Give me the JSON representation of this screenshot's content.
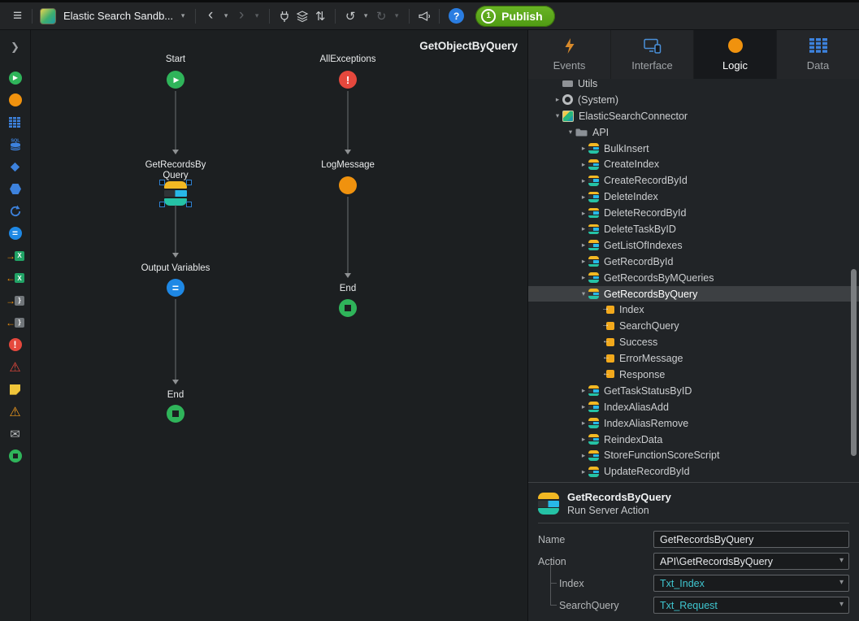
{
  "toolbar": {
    "app_title": "Elastic Search Sandb...",
    "publish_label": "Publish",
    "publish_count": "1"
  },
  "sidebar": {
    "tools": [
      {
        "name": "start-icon"
      },
      {
        "name": "server-action-icon"
      },
      {
        "name": "aggregate-icon"
      },
      {
        "name": "sql-query-icon"
      },
      {
        "name": "if-icon"
      },
      {
        "name": "switch-icon"
      },
      {
        "name": "for-each-icon"
      },
      {
        "name": "assign-icon"
      },
      {
        "name": "record-list-to-excel-icon"
      },
      {
        "name": "excel-to-record-list-icon"
      },
      {
        "name": "json-serialize-icon"
      },
      {
        "name": "json-deserialize-icon"
      },
      {
        "name": "raise-exception-icon"
      },
      {
        "name": "exception-handler-icon"
      },
      {
        "name": "comment-icon"
      },
      {
        "name": "trigger-icon"
      },
      {
        "name": "send-email-icon"
      },
      {
        "name": "end-icon"
      }
    ]
  },
  "canvas": {
    "title": "GetObjectByQuery",
    "main_flow": [
      {
        "label": "Start",
        "type": "start"
      },
      {
        "label": "GetRecordsBy Query",
        "type": "server-action",
        "selected": true
      },
      {
        "label": "Output Variables",
        "type": "assign"
      },
      {
        "label": "End",
        "type": "end"
      }
    ],
    "exception_flow": [
      {
        "label": "AllExceptions",
        "type": "exception"
      },
      {
        "label": "LogMessage",
        "type": "action"
      },
      {
        "label": "End",
        "type": "end"
      }
    ]
  },
  "panel": {
    "tabs": [
      {
        "label": "Events",
        "icon": "events-icon",
        "active": false
      },
      {
        "label": "Interface",
        "icon": "interface-icon",
        "active": false
      },
      {
        "label": "Logic",
        "icon": "logic-icon",
        "active": true
      },
      {
        "label": "Data",
        "icon": "data-icon",
        "active": false
      }
    ],
    "tree": {
      "items": [
        {
          "label": "Utils",
          "depth": 1,
          "icon": "folder-plain",
          "arrow": ""
        },
        {
          "label": "(System)",
          "depth": 1,
          "icon": "system",
          "arrow": "collapsed"
        },
        {
          "label": "ElasticSearchConnector",
          "depth": 1,
          "icon": "app",
          "arrow": "expanded"
        },
        {
          "label": "API",
          "depth": 2,
          "icon": "folder",
          "arrow": "expanded"
        },
        {
          "label": "BulkInsert",
          "depth": 3,
          "icon": "es-action",
          "arrow": "collapsed"
        },
        {
          "label": "CreateIndex",
          "depth": 3,
          "icon": "es-action",
          "arrow": "collapsed"
        },
        {
          "label": "CreateRecordById",
          "depth": 3,
          "icon": "es-action",
          "arrow": "collapsed"
        },
        {
          "label": "DeleteIndex",
          "depth": 3,
          "icon": "es-action",
          "arrow": "collapsed"
        },
        {
          "label": "DeleteRecordById",
          "depth": 3,
          "icon": "es-action",
          "arrow": "collapsed"
        },
        {
          "label": "DeleteTaskByID",
          "depth": 3,
          "icon": "es-action",
          "arrow": "collapsed"
        },
        {
          "label": "GetListOfIndexes",
          "depth": 3,
          "icon": "es-action",
          "arrow": "collapsed"
        },
        {
          "label": "GetRecordById",
          "depth": 3,
          "icon": "es-action",
          "arrow": "collapsed"
        },
        {
          "label": "GetRecordsByMQueries",
          "depth": 3,
          "icon": "es-action",
          "arrow": "collapsed"
        },
        {
          "label": "GetRecordsByQuery",
          "depth": 3,
          "icon": "es-action",
          "arrow": "expanded",
          "selected": true
        },
        {
          "label": "Index",
          "depth": 4,
          "icon": "param-in",
          "arrow": ""
        },
        {
          "label": "SearchQuery",
          "depth": 4,
          "icon": "param-in",
          "arrow": ""
        },
        {
          "label": "Success",
          "depth": 4,
          "icon": "param-out",
          "arrow": ""
        },
        {
          "label": "ErrorMessage",
          "depth": 4,
          "icon": "param-out",
          "arrow": ""
        },
        {
          "label": "Response",
          "depth": 4,
          "icon": "param-out",
          "arrow": ""
        },
        {
          "label": "GetTaskStatusByID",
          "depth": 3,
          "icon": "es-action",
          "arrow": "collapsed"
        },
        {
          "label": "IndexAliasAdd",
          "depth": 3,
          "icon": "es-action",
          "arrow": "collapsed"
        },
        {
          "label": "IndexAliasRemove",
          "depth": 3,
          "icon": "es-action",
          "arrow": "collapsed"
        },
        {
          "label": "ReindexData",
          "depth": 3,
          "icon": "es-action",
          "arrow": "collapsed"
        },
        {
          "label": "StoreFunctionScoreScript",
          "depth": 3,
          "icon": "es-action",
          "arrow": "collapsed"
        },
        {
          "label": "UpdateRecordById",
          "depth": 3,
          "icon": "es-action",
          "arrow": "collapsed"
        }
      ]
    },
    "properties": {
      "header_title": "GetRecordsByQuery",
      "header_subtitle": "Run Server Action",
      "fields": [
        {
          "label": "Name",
          "value": "GetRecordsByQuery",
          "type": "text",
          "indent": false,
          "accent": false
        },
        {
          "label": "Action",
          "value": "API\\GetRecordsByQuery",
          "type": "dropdown",
          "indent": false,
          "accent": false
        },
        {
          "label": "Index",
          "value": "Txt_Index",
          "type": "dropdown",
          "indent": true,
          "accent": true
        },
        {
          "label": "SearchQuery",
          "value": "Txt_Request",
          "type": "dropdown",
          "indent": true,
          "accent": true,
          "last": true
        }
      ]
    }
  }
}
